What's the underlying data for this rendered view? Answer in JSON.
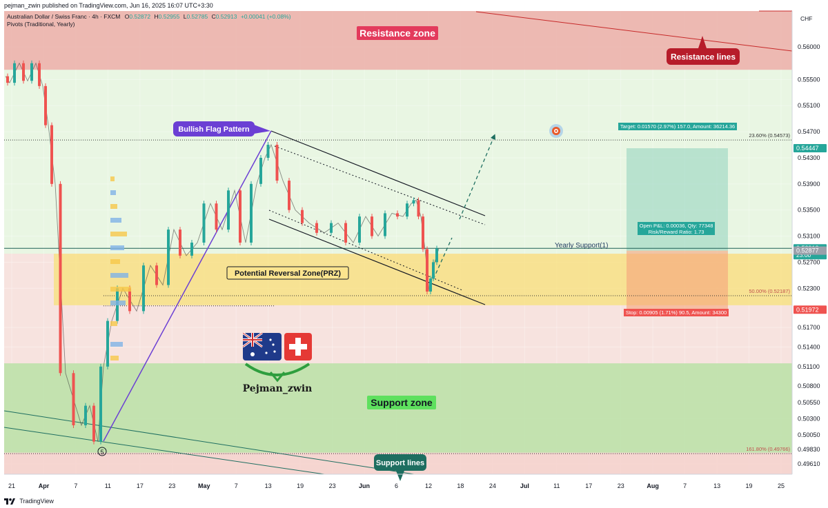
{
  "header": {
    "published": "pejman_zwin published on TradingView.com, Jun 16, 2025 16:07 UTC+3:30",
    "symbol_line": "Australian Dollar / Swiss Franc · 4h · FXCM",
    "ohlc": {
      "o_label": "O",
      "o": "0.52872",
      "h_label": "H",
      "h": "0.52955",
      "l_label": "L",
      "l": "0.52785",
      "c_label": "C",
      "c": "0.52913",
      "change": "+0.00041 (+0.08%)"
    },
    "indicator": "Pivots (Traditional, Yearly)"
  },
  "currency": "CHF",
  "footer": {
    "brand": "TradingView"
  },
  "colors": {
    "up": "#26a69a",
    "down": "#ef5350",
    "resistance_zone": "#e8a8a0",
    "support_zone": "#b9e0a5",
    "prz": "#f7e27a",
    "accent_purple": "#6b3fd4",
    "accent_teal": "#1e6e60",
    "accent_red": "#b71c2a"
  },
  "price_tags": [
    {
      "value": "0.54447",
      "color": "#26a69a"
    },
    {
      "value": "0.52913",
      "color": "#26a69a",
      "sub": "23:00"
    },
    {
      "value": "0.52877",
      "color": "#9aa0aa"
    },
    {
      "value": "0.51972",
      "color": "#ef5350"
    }
  ],
  "annotations": {
    "resistance_zone": "Resistance zone",
    "resistance_lines": "Resistance lines",
    "bullish_flag": "Bullish Flag Pattern",
    "prz": "Potential Reversal Zone(PRZ)",
    "support_zone": "Support zone",
    "support_lines": "Support lines",
    "yearly_support": "Yearly Support(1)",
    "wave_label": "5",
    "author": "Pejman_zwin",
    "fib_23": "23.60% (0.54573)",
    "fib_50": "50.00% (0.52187)",
    "fib_161": "161.80% (0.49766)",
    "target": "Target: 0.01570 (2.97%) 157.0, Amount: 36214.36",
    "open_pl": "Open P&L: 0.00036, Qty: 77348",
    "risk_reward": "Risk/Reward Ratio: 1.73",
    "stop": "Stop: 0.00905 (1.71%) 90.5, Amount: 34300"
  },
  "chart_data": {
    "type": "line",
    "title": "Australian Dollar / Swiss Franc · 4h · FXCM",
    "ylim": [
      0.4945,
      0.5655
    ],
    "y_ticks": [
      "0.56000",
      "0.55500",
      "0.55100",
      "0.54700",
      "0.54300",
      "0.53900",
      "0.53500",
      "0.53100",
      "0.52700",
      "0.52300",
      "0.51700",
      "0.51400",
      "0.51100",
      "0.50800",
      "0.50550",
      "0.50300",
      "0.50050",
      "0.49830",
      "0.49610"
    ],
    "x_ticks": [
      "21",
      "Apr",
      "7",
      "11",
      "17",
      "23",
      "May",
      "7",
      "13",
      "19",
      "23",
      "Jun",
      "6",
      "12",
      "18",
      "24",
      "Jul",
      "11",
      "17",
      "23",
      "Aug",
      "7",
      "13",
      "19",
      "25"
    ],
    "grid": true,
    "zones": {
      "resistance": [
        0.5565,
        0.5655
      ],
      "support": [
        0.4978,
        0.5115
      ],
      "prz": [
        0.5204,
        0.5283
      ]
    },
    "levels": {
      "fib_23_6": 0.54573,
      "fib_50": 0.52187,
      "fib_161_8": 0.49766,
      "yearly_support": 0.52913,
      "target": 0.54447,
      "entry": 0.52877,
      "stop": 0.51972
    },
    "series": [
      {
        "x": [
          "Mar 19",
          "Mar 21",
          "Mar 24",
          "Mar 27",
          "Mar 31",
          "Apr 2",
          "Apr 3",
          "Apr 4",
          "Apr 6",
          "Apr 7",
          "Apr 8",
          "Apr 9",
          "Apr 10",
          "Apr 11",
          "Apr 14",
          "Apr 17",
          "Apr 20",
          "Apr 22",
          "Apr 24",
          "Apr 27",
          "Apr 29",
          "May 1",
          "May 4",
          "May 7",
          "May 9",
          "May 11",
          "May 12",
          "May 13",
          "May 15",
          "May 18",
          "May 21",
          "May 23",
          "May 26",
          "May 28",
          "May 31",
          "Jun 2",
          "Jun 4",
          "Jun 6",
          "Jun 8",
          "Jun 10",
          "Jun 11",
          "Jun 12",
          "Jun 13",
          "Jun 14",
          "Jun 15",
          "Jun 16"
        ],
        "values": [
          0.5555,
          0.5545,
          0.5575,
          0.5548,
          0.5575,
          0.554,
          0.548,
          0.539,
          0.51,
          0.502,
          0.505,
          0.4995,
          0.511,
          0.518,
          0.523,
          0.5195,
          0.5265,
          0.5235,
          0.532,
          0.528,
          0.53,
          0.536,
          0.532,
          0.538,
          0.53,
          0.539,
          0.543,
          0.545,
          0.5395,
          0.535,
          0.533,
          0.5315,
          0.533,
          0.53,
          0.534,
          0.531,
          0.5345,
          0.534,
          0.536,
          0.5365,
          0.534,
          0.529,
          0.5225,
          0.5245,
          0.527,
          0.5291
        ]
      }
    ]
  }
}
